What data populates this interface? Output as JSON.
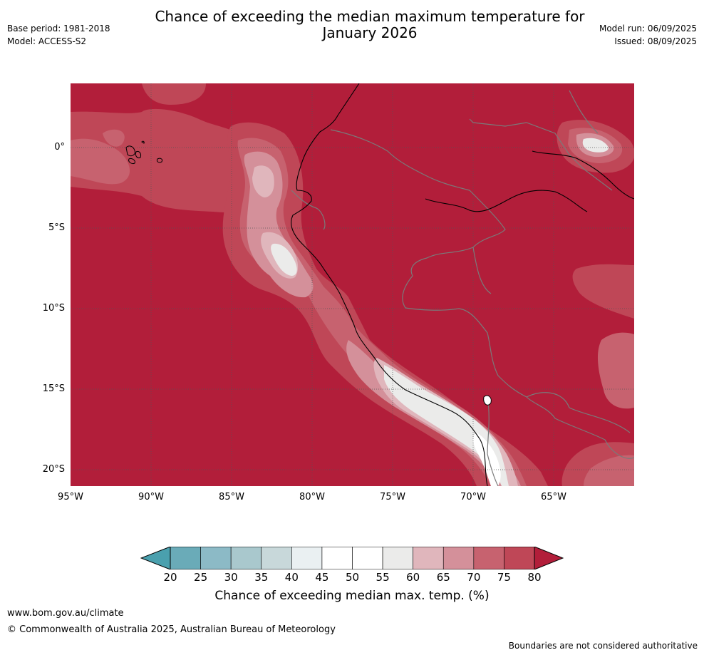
{
  "header": {
    "title_line1": "Chance of exceeding the median maximum temperature for",
    "title_line2": "January 2026",
    "base_period": "Base period: 1981-2018",
    "model": "Model: ACCESS-S2",
    "model_run": "Model run: 06/09/2025",
    "issued": "Issued: 08/09/2025"
  },
  "map": {
    "background_color": "#b21e3a",
    "lat_labels": [
      "0°",
      "5°S",
      "10°S",
      "15°S",
      "20°S"
    ],
    "lon_labels": [
      "95°W",
      "90°W",
      "85°W",
      "80°W",
      "75°W",
      "70°W",
      "65°W"
    ]
  },
  "legend": {
    "ticks": [
      "20",
      "25",
      "30",
      "35",
      "40",
      "45",
      "50",
      "55",
      "60",
      "65",
      "70",
      "75",
      "80"
    ],
    "colors": [
      "#6aabb8",
      "#8cbac6",
      "#a9c8cd",
      "#c8d8da",
      "#eaf0f2",
      "#ffffff",
      "#ffffff",
      "#ebebea",
      "#e0b6bc",
      "#d4909a",
      "#c7626f",
      "#bf4757"
    ],
    "low_extend_color": "#4aa0ae",
    "high_extend_color": "#b21e3a",
    "label": "Chance of exceeding median max. temp. (%)"
  },
  "footer": {
    "website": "www.bom.gov.au/climate",
    "copyright": "© Commonwealth of Australia 2025, Australian Bureau of Meteorology",
    "disclaimer": "Boundaries are not considered authoritative"
  }
}
